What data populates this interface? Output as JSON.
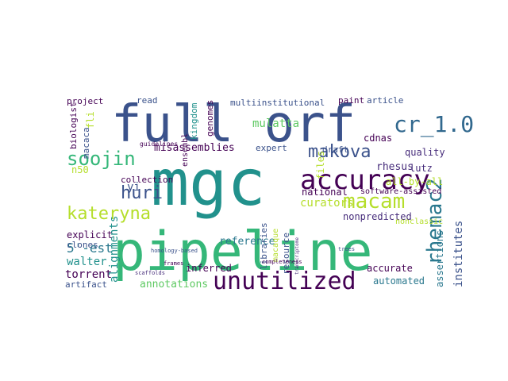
{
  "palette": [
    "#440154",
    "#3b528b",
    "#21918c",
    "#5ec962",
    "#fde725",
    "#31688e",
    "#35b779",
    "#90d743",
    "#472d7b",
    "#2a788e",
    "#b5de2b"
  ],
  "words": [
    {
      "text": "mgc",
      "weight": 1.0,
      "color": "#21918c"
    },
    {
      "text": "pipeline",
      "weight": 0.95,
      "color": "#35b779"
    },
    {
      "text": "full orf",
      "weight": 0.9,
      "color": "#3b528b"
    },
    {
      "text": "accuracy",
      "weight": 0.7,
      "color": "#440154"
    },
    {
      "text": "unutilized",
      "weight": 0.6,
      "color": "#440154"
    },
    {
      "text": "macam",
      "weight": 0.58,
      "color": "#b5de2b"
    },
    {
      "text": "rhemac2",
      "weight": 0.55,
      "color": "#2a788e"
    },
    {
      "text": "cr_1.0",
      "weight": 0.5,
      "color": "#31688e"
    },
    {
      "text": "soojin",
      "weight": 0.45,
      "color": "#35b779"
    },
    {
      "text": "kateryna",
      "weight": 0.45,
      "color": "#b5de2b"
    },
    {
      "text": "huri",
      "weight": 0.42,
      "color": "#3b528b"
    },
    {
      "text": "makova",
      "weight": 0.4,
      "color": "#3b528b"
    },
    {
      "text": "misassemblies",
      "weight": 0.25,
      "color": "#440154"
    },
    {
      "text": "multiinstitutional",
      "weight": 0.22,
      "color": "#3b528b"
    },
    {
      "text": "annotations",
      "weight": 0.25,
      "color": "#5ec962"
    },
    {
      "text": "alignments",
      "weight": 0.3,
      "color": "#21918c"
    },
    {
      "text": "institutes",
      "weight": 0.3,
      "color": "#3b528b"
    },
    {
      "text": "nonpredicted",
      "weight": 0.25,
      "color": "#472d7b"
    },
    {
      "text": "automated",
      "weight": 0.25,
      "color": "#2a788e"
    },
    {
      "text": "curators",
      "weight": 0.25,
      "color": "#b5de2b"
    },
    {
      "text": "mulatta",
      "weight": 0.22,
      "color": "#5ec962"
    },
    {
      "text": "quality",
      "weight": 0.2,
      "color": "#472d7b"
    },
    {
      "text": "cdnas",
      "weight": 0.2,
      "color": "#440154"
    },
    {
      "text": "rhesus",
      "weight": 0.2,
      "color": "#472d7b"
    },
    {
      "text": "lutz",
      "weight": 0.22,
      "color": "#472d7b"
    },
    {
      "text": "all-by-all",
      "weight": 0.18,
      "color": "#b5de2b"
    },
    {
      "text": "inferred",
      "weight": 0.2,
      "color": "#440154"
    },
    {
      "text": "reference",
      "weight": 0.2,
      "color": "#2a788e"
    },
    {
      "text": "assertions",
      "weight": 0.2,
      "color": "#2a788e"
    },
    {
      "text": "accurate",
      "weight": 0.18,
      "color": "#440154"
    },
    {
      "text": "walter",
      "weight": 0.2,
      "color": "#21918c"
    },
    {
      "text": "5'-est",
      "weight": 0.22,
      "color": "#2a788e"
    },
    {
      "text": "explicit",
      "weight": 0.2,
      "color": "#440154"
    },
    {
      "text": "torrent",
      "weight": 0.2,
      "color": "#440154"
    },
    {
      "text": "artifact",
      "weight": 0.15,
      "color": "#3b528b"
    },
    {
      "text": "clones",
      "weight": 0.15,
      "color": "#3b528b"
    },
    {
      "text": "collection",
      "weight": 0.15,
      "color": "#440154"
    },
    {
      "text": "national",
      "weight": 0.15,
      "color": "#440154"
    },
    {
      "text": "expert",
      "weight": 0.15,
      "color": "#3b528b"
    },
    {
      "text": "draft",
      "weight": 0.15,
      "color": "#3b528b"
    },
    {
      "text": "paint",
      "weight": 0.15,
      "color": "#440154"
    },
    {
      "text": "article",
      "weight": 0.15,
      "color": "#3b528b"
    },
    {
      "text": "read",
      "weight": 0.12,
      "color": "#3b528b"
    },
    {
      "text": "project",
      "weight": 0.13,
      "color": "#440154"
    },
    {
      "text": "biologist",
      "weight": 0.13,
      "color": "#440154"
    },
    {
      "text": "macaca",
      "weight": 0.13,
      "color": "#3b528b"
    },
    {
      "text": "yi",
      "weight": 0.13,
      "color": "#3b528b"
    },
    {
      "text": "ensembl",
      "weight": 0.13,
      "color": "#440154"
    },
    {
      "text": "kingdom",
      "weight": 0.13,
      "color": "#21918c"
    },
    {
      "text": "genomes",
      "weight": 0.13,
      "color": "#440154"
    },
    {
      "text": "libraries",
      "weight": 0.13,
      "color": "#3b528b"
    },
    {
      "text": "macaque",
      "weight": 0.13,
      "color": "#b5de2b"
    },
    {
      "text": "resource",
      "weight": 0.13,
      "color": "#3b528b"
    },
    {
      "text": "files",
      "weight": 0.13,
      "color": "#b5de2b"
    },
    {
      "text": "software-assisted",
      "weight": 0.12,
      "color": "#440154"
    },
    {
      "text": "nonclassic",
      "weight": 0.12,
      "color": "#b5de2b"
    },
    {
      "text": "n50",
      "weight": 0.13,
      "color": "#b5de2b"
    },
    {
      "text": "guidelines",
      "weight": 0.1,
      "color": "#440154"
    },
    {
      "text": "frames",
      "weight": 0.09,
      "color": "#440154"
    },
    {
      "text": "scaffolds",
      "weight": 0.09,
      "color": "#472d7b"
    },
    {
      "text": "homology-based",
      "weight": 0.08,
      "color": "#3b528b"
    },
    {
      "text": "transcriptome",
      "weight": 0.08,
      "color": "#472d7b"
    },
    {
      "text": "completeness",
      "weight": 0.08,
      "color": "#440154"
    },
    {
      "text": "trees",
      "weight": 0.08,
      "color": "#3b528b"
    },
    {
      "text": "fli",
      "weight": 0.13,
      "color": "#b5de2b"
    }
  ]
}
